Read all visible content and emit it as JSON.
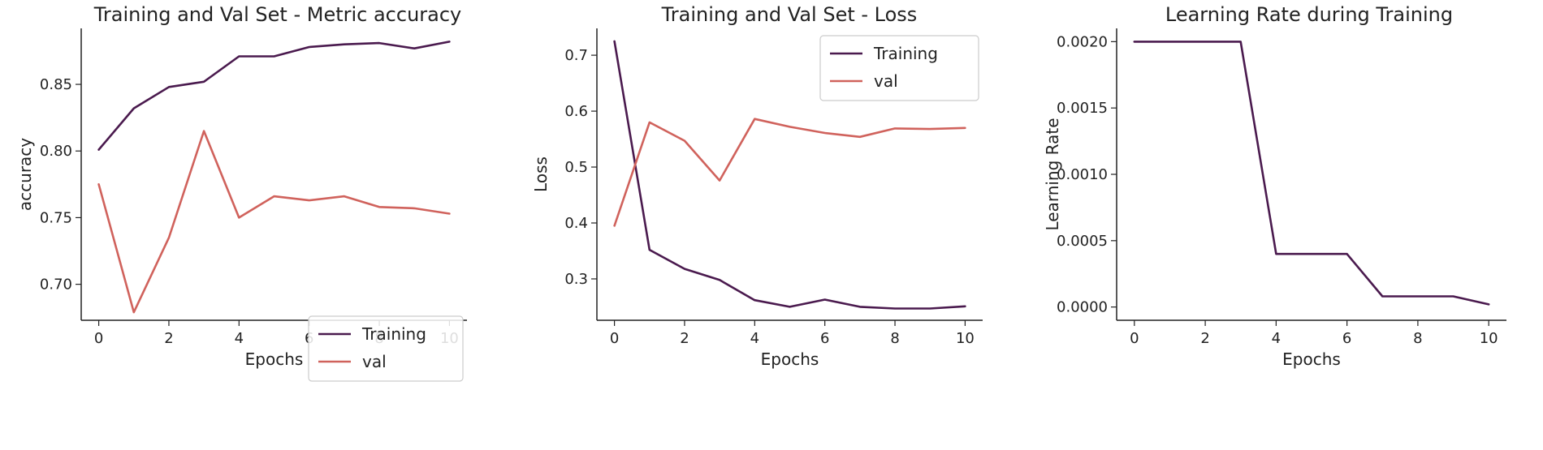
{
  "chart_data": [
    {
      "type": "line",
      "title": "Training and Val Set - Metric accuracy",
      "xlabel": "Epochs",
      "ylabel": "accuracy",
      "x": [
        0,
        1,
        2,
        3,
        4,
        5,
        6,
        7,
        8,
        9,
        10
      ],
      "xlim": [
        -0.5,
        10.5
      ],
      "ylim": [
        0.673,
        0.892
      ],
      "xticks": [
        0,
        2,
        4,
        6,
        8,
        10
      ],
      "yticks": [
        0.7,
        0.75,
        0.8,
        0.85
      ],
      "ytick_labels": [
        "0.70",
        "0.75",
        "0.80",
        "0.85"
      ],
      "legend": "lower-right",
      "grid": false,
      "series": [
        {
          "name": "Training",
          "color": "#4a1a4e",
          "values": [
            0.801,
            0.832,
            0.848,
            0.852,
            0.871,
            0.871,
            0.878,
            0.88,
            0.881,
            0.877,
            0.882
          ]
        },
        {
          "name": "val",
          "color": "#d0625c",
          "values": [
            0.775,
            0.679,
            0.735,
            0.815,
            0.75,
            0.766,
            0.763,
            0.766,
            0.758,
            0.757,
            0.753
          ]
        }
      ]
    },
    {
      "type": "line",
      "title": "Training and Val Set - Loss",
      "xlabel": "Epochs",
      "ylabel": "Loss",
      "x": [
        0,
        1,
        2,
        3,
        4,
        5,
        6,
        7,
        8,
        9,
        10
      ],
      "xlim": [
        -0.5,
        10.5
      ],
      "ylim": [
        0.226,
        0.748
      ],
      "xticks": [
        0,
        2,
        4,
        6,
        8,
        10
      ],
      "yticks": [
        0.3,
        0.4,
        0.5,
        0.6,
        0.7
      ],
      "ytick_labels": [
        "0.3",
        "0.4",
        "0.5",
        "0.6",
        "0.7"
      ],
      "legend": "upper-right",
      "grid": false,
      "series": [
        {
          "name": "Training",
          "color": "#4a1a4e",
          "values": [
            0.725,
            0.352,
            0.318,
            0.298,
            0.262,
            0.25,
            0.263,
            0.25,
            0.247,
            0.247,
            0.251
          ]
        },
        {
          "name": "val",
          "color": "#d0625c",
          "values": [
            0.395,
            0.58,
            0.547,
            0.476,
            0.586,
            0.572,
            0.561,
            0.554,
            0.569,
            0.568,
            0.57
          ]
        }
      ]
    },
    {
      "type": "line",
      "title": "Learning Rate during Training",
      "xlabel": "Epochs",
      "ylabel": "Learning Rate",
      "x": [
        0,
        1,
        2,
        3,
        4,
        5,
        6,
        7,
        8,
        9,
        10
      ],
      "xlim": [
        -0.5,
        10.5
      ],
      "ylim": [
        -0.0001,
        0.0021
      ],
      "xticks": [
        0,
        2,
        4,
        6,
        8,
        10
      ],
      "yticks": [
        0.0,
        0.0005,
        0.001,
        0.0015,
        0.002
      ],
      "ytick_labels": [
        "0.0000",
        "0.0005",
        "0.0010",
        "0.0015",
        "0.0020"
      ],
      "legend": "none",
      "grid": false,
      "series": [
        {
          "color": "#4a1a4e",
          "values": [
            0.002,
            0.002,
            0.002,
            0.002,
            0.0004,
            0.0004,
            0.0004,
            8e-05,
            8e-05,
            8e-05,
            2e-05
          ]
        }
      ]
    }
  ]
}
